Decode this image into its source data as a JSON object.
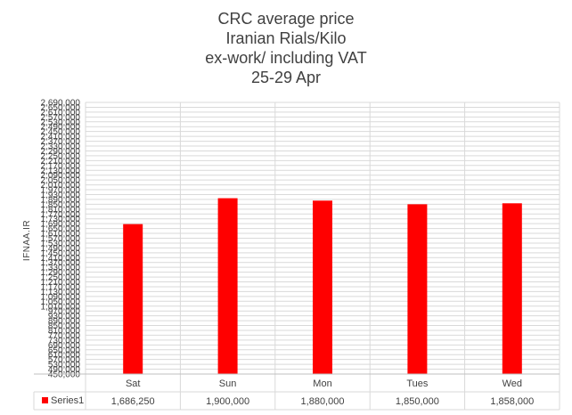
{
  "chart_data": {
    "type": "bar",
    "title_lines": [
      "CRC average price",
      "Iranian Rials/Kilo",
      "ex-work/ including VAT",
      "25-29 Apr"
    ],
    "ylabel": "IFNAA.IR",
    "ylim": [
      450000,
      2690000
    ],
    "ytick_step": 40000,
    "grid": true,
    "categories": [
      "Sat",
      "Sun",
      "Mon",
      "Tues",
      "Wed"
    ],
    "series": [
      {
        "name": "Series1",
        "color": "#ff0000",
        "values": [
          1686250,
          1900000,
          1880000,
          1850000,
          1858000
        ],
        "value_labels": [
          "1,686,250",
          "1,900,000",
          "1,880,000",
          "1,850,000",
          "1,858,000"
        ]
      }
    ]
  }
}
